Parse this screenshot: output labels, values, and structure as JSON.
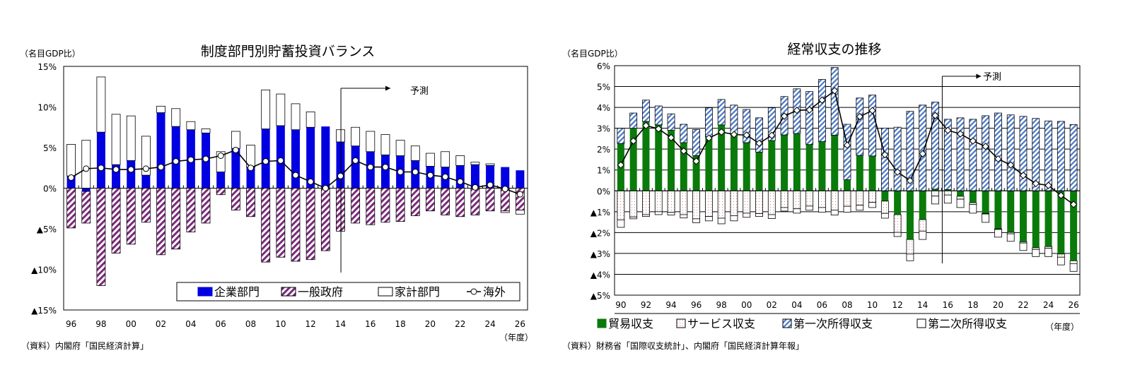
{
  "chart_data": [
    {
      "type": "bar",
      "stacked": true,
      "title": "制度部門別貯蓄投資バランス",
      "ylabel": "（名目GDP比）",
      "xlabel": "（年度）",
      "source": "（資料）内閣府「国民経済計算」",
      "forecast_label": "予測",
      "forecast_start": "15",
      "ylim": [
        -15,
        15
      ],
      "yticks": [
        {
          "v": 15,
          "label": "15%"
        },
        {
          "v": 10,
          "label": "10%"
        },
        {
          "v": 5,
          "label": "5%"
        },
        {
          "v": 0,
          "label": "0%"
        },
        {
          "v": -5,
          "label": "▲5%"
        },
        {
          "v": -10,
          "label": "▲10%"
        },
        {
          "v": -15,
          "label": "▲15%"
        }
      ],
      "grid": false,
      "legend_position": "bottom-right",
      "categories": [
        "96",
        "97",
        "98",
        "99",
        "00",
        "01",
        "02",
        "03",
        "04",
        "05",
        "06",
        "07",
        "08",
        "09",
        "10",
        "11",
        "12",
        "13",
        "14",
        "15",
        "16",
        "17",
        "18",
        "19",
        "20",
        "21",
        "22",
        "23",
        "24",
        "25",
        "26"
      ],
      "series": [
        {
          "name": "企業部門",
          "kind": "bar",
          "color": "#0000e0",
          "pattern": "solid",
          "values": [
            1.5,
            -0.4,
            6.9,
            2.9,
            3.4,
            1.6,
            9.3,
            7.6,
            7.2,
            6.8,
            2.0,
            4.9,
            2.6,
            7.3,
            7.7,
            7.2,
            7.5,
            7.6,
            5.7,
            5.2,
            4.5,
            4.1,
            4.0,
            3.4,
            2.7,
            2.6,
            2.8,
            2.9,
            2.8,
            2.6,
            2.2
          ]
        },
        {
          "name": "一般政府",
          "kind": "bar",
          "color": "#7a2a7a",
          "pattern": "hatch",
          "values": [
            -4.9,
            -3.9,
            -12.0,
            -8.0,
            -6.9,
            -4.2,
            -8.2,
            -7.5,
            -5.4,
            -4.3,
            -0.8,
            -2.7,
            -3.5,
            -9.1,
            -8.5,
            -9.0,
            -8.8,
            -7.7,
            -5.3,
            -4.3,
            -4.5,
            -4.2,
            -4.1,
            -3.4,
            -2.8,
            -3.3,
            -3.5,
            -3.3,
            -2.8,
            -2.8,
            -2.7
          ]
        },
        {
          "name": "家計部門",
          "kind": "bar",
          "color": "#ffffff",
          "pattern": "outline",
          "values": [
            3.9,
            5.9,
            6.8,
            6.2,
            5.5,
            4.8,
            0.8,
            2.2,
            1.0,
            0.5,
            2.5,
            2.1,
            2.7,
            4.8,
            3.9,
            3.2,
            1.9,
            0.0,
            1.5,
            2.3,
            2.5,
            2.5,
            1.9,
            1.8,
            1.6,
            1.9,
            1.2,
            0.3,
            0.2,
            -0.2,
            -0.5
          ]
        },
        {
          "name": "海外",
          "kind": "line",
          "marker": "circle",
          "values": [
            1.3,
            2.4,
            2.5,
            2.3,
            2.3,
            2.4,
            2.6,
            3.3,
            3.5,
            3.6,
            4.0,
            4.7,
            2.5,
            3.3,
            3.4,
            1.6,
            0.8,
            0.0,
            1.5,
            3.4,
            2.6,
            2.6,
            2.0,
            2.0,
            1.6,
            1.4,
            0.8,
            0.1,
            0.4,
            -0.1,
            -0.75
          ]
        }
      ]
    },
    {
      "type": "bar",
      "stacked": true,
      "title": "経常収支の推移",
      "ylabel": "（名目GDP比）",
      "xlabel": "（年度）",
      "source": "（資料）財務省「国際収支統計」、内閣府「国民経済計算年報」",
      "forecast_label": "予測",
      "forecast_start": "16",
      "ylim": [
        -5,
        6
      ],
      "yticks": [
        {
          "v": 6,
          "label": "6%"
        },
        {
          "v": 5,
          "label": "5%"
        },
        {
          "v": 4,
          "label": "4%"
        },
        {
          "v": 3,
          "label": "3%"
        },
        {
          "v": 2,
          "label": "2%"
        },
        {
          "v": 1,
          "label": "1%"
        },
        {
          "v": 0,
          "label": "0%"
        },
        {
          "v": -1,
          "label": "▲1%"
        },
        {
          "v": -2,
          "label": "▲2%"
        },
        {
          "v": -3,
          "label": "▲3%"
        },
        {
          "v": -4,
          "label": "▲4%"
        },
        {
          "v": -5,
          "label": "▲5%"
        }
      ],
      "grid": true,
      "legend_position": "bottom",
      "categories": [
        "90",
        "91",
        "92",
        "93",
        "94",
        "95",
        "96",
        "97",
        "98",
        "99",
        "00",
        "01",
        "02",
        "03",
        "04",
        "05",
        "06",
        "07",
        "08",
        "09",
        "10",
        "11",
        "12",
        "13",
        "14",
        "15",
        "16",
        "17",
        "18",
        "19",
        "20",
        "21",
        "22",
        "23",
        "24",
        "25",
        "26"
      ],
      "series": [
        {
          "name": "貿易収支",
          "kind": "bar",
          "color": "#0a7a0a",
          "pattern": "solid",
          "values": [
            2.27,
            3.0,
            3.33,
            3.16,
            2.9,
            2.31,
            1.69,
            2.6,
            3.16,
            2.69,
            2.31,
            1.86,
            2.41,
            2.68,
            2.75,
            2.22,
            2.36,
            2.67,
            0.53,
            1.7,
            1.67,
            -0.49,
            -1.14,
            -2.33,
            -1.38,
            0.08,
            0.06,
            -0.26,
            -0.57,
            -1.08,
            -1.82,
            -1.99,
            -2.44,
            -2.73,
            -2.67,
            -3.03,
            -3.35
          ]
        },
        {
          "name": "サービス収支",
          "kind": "bar",
          "color": "#f6e8e8",
          "pattern": "dots",
          "values": [
            -1.39,
            -1.25,
            -1.14,
            -1.0,
            -1.03,
            -1.14,
            -1.34,
            -1.23,
            -1.31,
            -1.19,
            -1.07,
            -1.09,
            -1.14,
            -0.8,
            -0.86,
            -0.73,
            -0.8,
            -0.92,
            -0.74,
            -0.69,
            -0.55,
            -0.59,
            -0.85,
            -0.7,
            -0.55,
            -0.25,
            -0.2,
            -0.14,
            -0.08,
            -0.03,
            -0.03,
            -0.07,
            -0.06,
            -0.08,
            -0.08,
            -0.15,
            -0.14
          ]
        },
        {
          "name": "第一次所得収支",
          "kind": "bar",
          "color": "#4a78c8",
          "pattern": "hatch",
          "values": [
            0.73,
            0.73,
            1.02,
            0.91,
            0.79,
            0.88,
            1.25,
            1.38,
            1.22,
            1.42,
            1.59,
            1.64,
            1.57,
            1.84,
            2.14,
            2.54,
            2.98,
            3.24,
            2.66,
            2.75,
            2.92,
            3.01,
            3.05,
            3.81,
            4.11,
            4.17,
            3.37,
            3.5,
            3.43,
            3.6,
            3.73,
            3.64,
            3.57,
            3.47,
            3.35,
            3.33,
            3.18
          ]
        },
        {
          "name": "第二次所得収支",
          "kind": "bar",
          "color": "#ffffff",
          "pattern": "outline",
          "values": [
            -0.36,
            -0.09,
            -0.09,
            -0.14,
            -0.13,
            -0.16,
            -0.19,
            -0.21,
            -0.27,
            -0.25,
            -0.2,
            -0.14,
            -0.19,
            -0.17,
            -0.21,
            -0.2,
            -0.22,
            -0.24,
            -0.28,
            -0.24,
            -0.25,
            -0.23,
            -0.2,
            -0.32,
            -0.4,
            -0.38,
            -0.39,
            -0.4,
            -0.42,
            -0.4,
            -0.37,
            -0.36,
            -0.36,
            -0.34,
            -0.4,
            -0.37,
            -0.37
          ]
        },
        {
          "name": "経常収支",
          "kind": "line",
          "marker": "diamond",
          "values": [
            1.24,
            2.39,
            3.13,
            2.97,
            2.55,
            1.91,
            1.42,
            2.53,
            2.82,
            2.7,
            2.67,
            2.28,
            2.66,
            3.58,
            3.86,
            3.88,
            4.35,
            4.8,
            2.19,
            3.56,
            3.85,
            1.73,
            0.9,
            0.49,
            1.78,
            3.61,
            2.9,
            2.73,
            2.39,
            2.13,
            1.53,
            1.24,
            0.74,
            0.35,
            0.26,
            -0.22,
            -0.65
          ]
        }
      ]
    }
  ]
}
